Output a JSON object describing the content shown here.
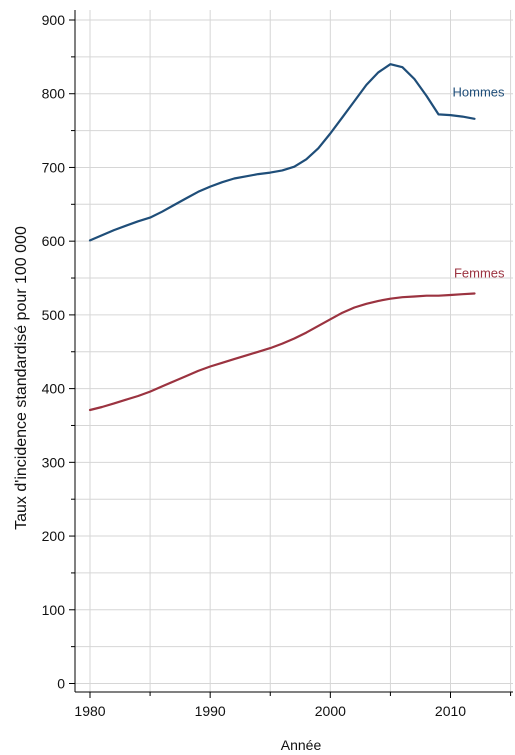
{
  "chart_data": {
    "type": "line",
    "title": "",
    "xlabel": "Année",
    "ylabel": "Taux d'incidence standardisé pour 100 000",
    "xlim": [
      1980,
      2015
    ],
    "ylim": [
      0,
      900
    ],
    "x_ticks": [
      1980,
      1990,
      2000,
      2010
    ],
    "y_ticks": [
      0,
      100,
      200,
      300,
      400,
      500,
      600,
      700,
      800,
      900
    ],
    "grid": true,
    "legend": "inline labels at line ends",
    "series": [
      {
        "name": "Hommes",
        "color": "#1f4e79",
        "x": [
          1980,
          1981,
          1982,
          1983,
          1984,
          1985,
          1986,
          1987,
          1988,
          1989,
          1990,
          1991,
          1992,
          1993,
          1994,
          1995,
          1996,
          1997,
          1998,
          1999,
          2000,
          2001,
          2002,
          2003,
          2004,
          2005,
          2006,
          2007,
          2008,
          2009,
          2010,
          2011,
          2012
        ],
        "values": [
          601,
          608,
          615,
          621,
          627,
          632,
          640,
          649,
          658,
          667,
          674,
          680,
          685,
          688,
          691,
          693,
          696,
          701,
          711,
          726,
          746,
          768,
          790,
          812,
          829,
          840,
          836,
          820,
          797,
          772,
          771,
          769,
          766
        ]
      },
      {
        "name": "Femmes",
        "color": "#9b3340",
        "x": [
          1980,
          1981,
          1982,
          1983,
          1984,
          1985,
          1986,
          1987,
          1988,
          1989,
          1990,
          1991,
          1992,
          1993,
          1994,
          1995,
          1996,
          1997,
          1998,
          1999,
          2000,
          2001,
          2002,
          2003,
          2004,
          2005,
          2006,
          2007,
          2008,
          2009,
          2010,
          2011,
          2012
        ],
        "values": [
          371,
          375,
          380,
          385,
          390,
          396,
          403,
          410,
          417,
          424,
          430,
          435,
          440,
          445,
          450,
          455,
          461,
          468,
          476,
          485,
          494,
          503,
          510,
          515,
          519,
          522,
          524,
          525,
          526,
          526,
          527,
          528,
          529
        ]
      }
    ]
  }
}
